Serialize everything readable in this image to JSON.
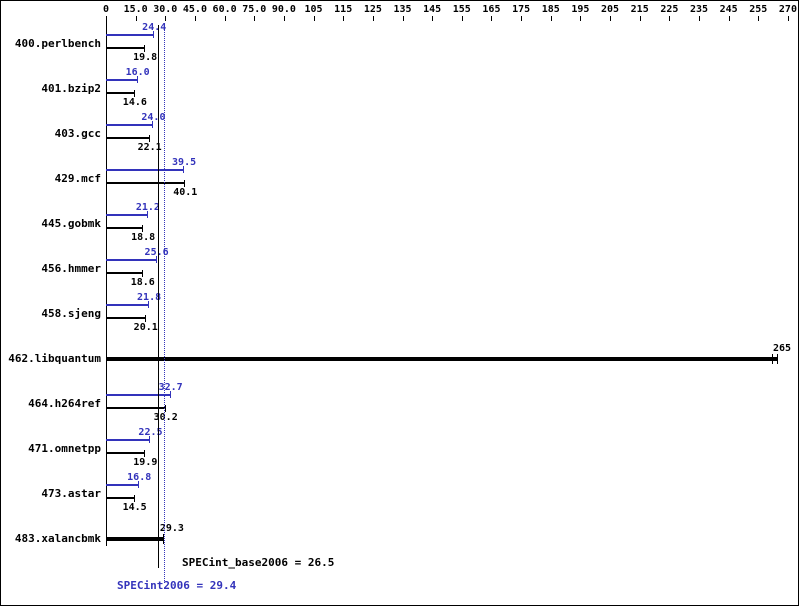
{
  "chart_data": {
    "type": "bar",
    "orientation": "horizontal",
    "title": "",
    "grid": false,
    "axis": {
      "position": "top",
      "tick_values": [
        0,
        15,
        30,
        45,
        60,
        75,
        90,
        105,
        115,
        125,
        135,
        145,
        155,
        165,
        175,
        185,
        195,
        205,
        215,
        225,
        235,
        245,
        255,
        270
      ],
      "tick_labels": [
        "0",
        "15.0",
        "30.0",
        "45.0",
        "60.0",
        "75.0",
        "90.0",
        "105",
        "115",
        "125",
        "135",
        "145",
        "155",
        "165",
        "175",
        "185",
        "195",
        "205",
        "215",
        "225",
        "235",
        "245",
        "255",
        "270"
      ]
    },
    "series": [
      {
        "name": "peak",
        "color": "#3333bb"
      },
      {
        "name": "base",
        "color": "#000000"
      }
    ],
    "benchmarks": [
      {
        "name": "400.perlbench",
        "peak": {
          "value": 24.4,
          "label": "24.4"
        },
        "base": {
          "value": 19.8,
          "label": "19.8"
        }
      },
      {
        "name": "401.bzip2",
        "peak": {
          "value": 16.0,
          "label": "16.0"
        },
        "base": {
          "value": 14.6,
          "label": "14.6"
        }
      },
      {
        "name": "403.gcc",
        "peak": {
          "value": 24.0,
          "label": "24.0"
        },
        "base": {
          "value": 22.1,
          "label": "22.1"
        }
      },
      {
        "name": "429.mcf",
        "peak": {
          "value": 39.5,
          "label": "39.5"
        },
        "base": {
          "value": 40.1,
          "label": "40.1"
        }
      },
      {
        "name": "445.gobmk",
        "peak": {
          "value": 21.2,
          "label": "21.2"
        },
        "base": {
          "value": 18.8,
          "label": "18.8"
        }
      },
      {
        "name": "456.hmmer",
        "peak": {
          "value": 25.6,
          "label": "25.6"
        },
        "base": {
          "value": 18.6,
          "label": "18.6"
        }
      },
      {
        "name": "458.sjeng",
        "peak": {
          "value": 21.8,
          "label": "21.8"
        },
        "base": {
          "value": 20.1,
          "label": "20.1"
        }
      },
      {
        "name": "462.libquantum",
        "merged": {
          "value": 265,
          "label": "265"
        }
      },
      {
        "name": "464.h264ref",
        "peak": {
          "value": 32.7,
          "label": "32.7"
        },
        "base": {
          "value": 30.2,
          "label": "30.2"
        }
      },
      {
        "name": "471.omnetpp",
        "peak": {
          "value": 22.5,
          "label": "22.5"
        },
        "base": {
          "value": 19.9,
          "label": "19.9"
        }
      },
      {
        "name": "473.astar",
        "peak": {
          "value": 16.8,
          "label": "16.8"
        },
        "base": {
          "value": 14.5,
          "label": "14.5"
        }
      },
      {
        "name": "483.xalancbmk",
        "merged": {
          "value": 29.3,
          "label": "29.3"
        }
      }
    ],
    "means": {
      "base": {
        "value": 26.5,
        "label": "SPECint_base2006 = 26.5",
        "line": "solid",
        "color": "#000000"
      },
      "peak": {
        "value": 29.4,
        "label": "SPECint2006 = 29.4",
        "line": "dotted",
        "color": "#3333bb"
      }
    }
  }
}
